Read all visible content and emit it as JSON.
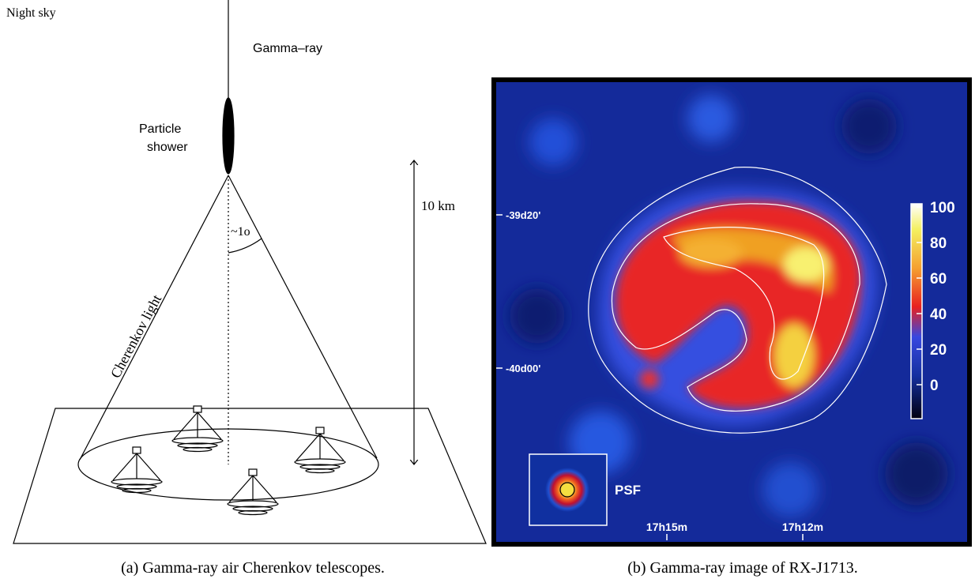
{
  "panel_a": {
    "labels": {
      "night_sky": "Night sky",
      "gamma_ray": "Gamma–ray",
      "particle": "Particle",
      "shower": "shower",
      "angle": "~1o",
      "distance": "10 km",
      "cherenkov_light": "Cherenkov light"
    },
    "caption": "(a) Gamma-ray air Cherenkov telescopes."
  },
  "panel_b": {
    "dec_labels": [
      "-39d20'",
      "-40d00'"
    ],
    "ra_labels": [
      "17h15m",
      "17h12m"
    ],
    "psf_label": "PSF",
    "colorbar_ticks": [
      100,
      80,
      60,
      40,
      20,
      0
    ],
    "caption": "(b) Gamma-ray image of RX-J1713."
  }
}
